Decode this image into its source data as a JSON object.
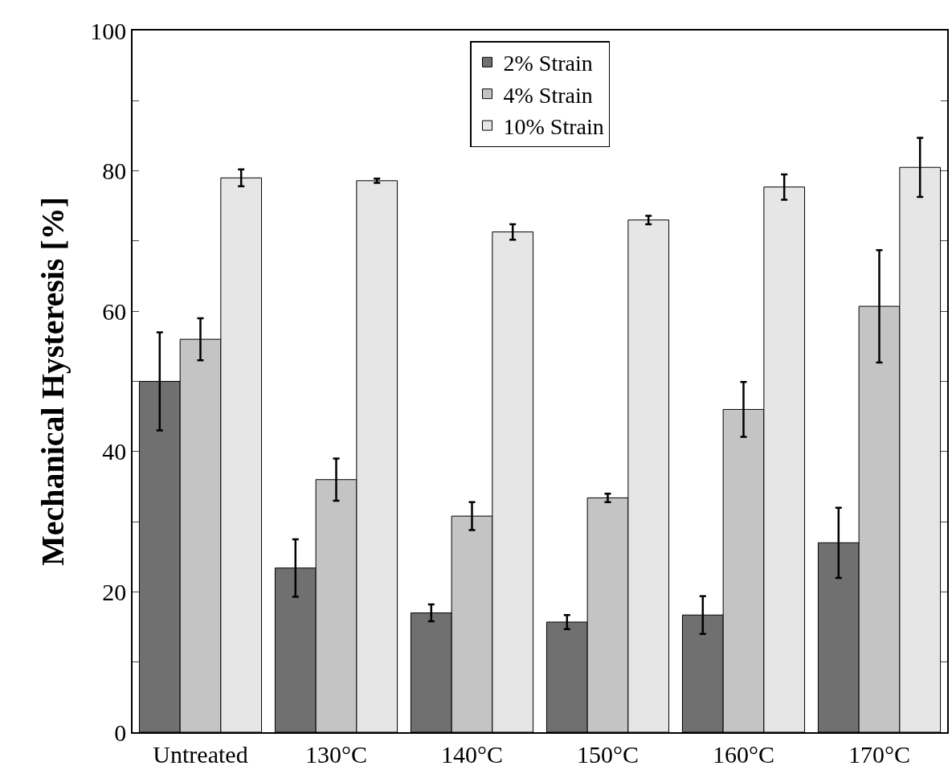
{
  "chart_data": {
    "type": "bar",
    "ylabel": "Mechanical Hysteresis [%]",
    "categories": [
      "Untreated",
      "130°C",
      "140°C",
      "150°C",
      "160°C",
      "170°C"
    ],
    "series": [
      {
        "name": "2% Strain",
        "color": "#707070",
        "values": [
          50,
          23.4,
          17,
          15.7,
          16.7,
          27
        ],
        "errors": [
          7,
          4.1,
          1.2,
          1,
          2.7,
          5
        ]
      },
      {
        "name": "4% Strain",
        "color": "#c4c4c4",
        "values": [
          56,
          36,
          30.8,
          33.4,
          46,
          60.7
        ],
        "errors": [
          3,
          3,
          2,
          0.6,
          3.9,
          8
        ]
      },
      {
        "name": "10% Strain",
        "color": "#e6e6e6",
        "values": [
          79,
          78.6,
          71.3,
          73,
          77.7,
          80.5
        ],
        "errors": [
          1.2,
          0.3,
          1.1,
          0.6,
          1.8,
          4.2
        ]
      }
    ],
    "ylim": [
      0,
      100
    ],
    "yticks": [
      0,
      {
        "value": 10,
        "label": null
      },
      20,
      {
        "value": 30,
        "label": null
      },
      40,
      {
        "value": 50,
        "label": null
      },
      60,
      {
        "value": 70,
        "label": null
      },
      80,
      {
        "value": 90,
        "label": null
      },
      100
    ],
    "grid": false,
    "legend": "top"
  }
}
